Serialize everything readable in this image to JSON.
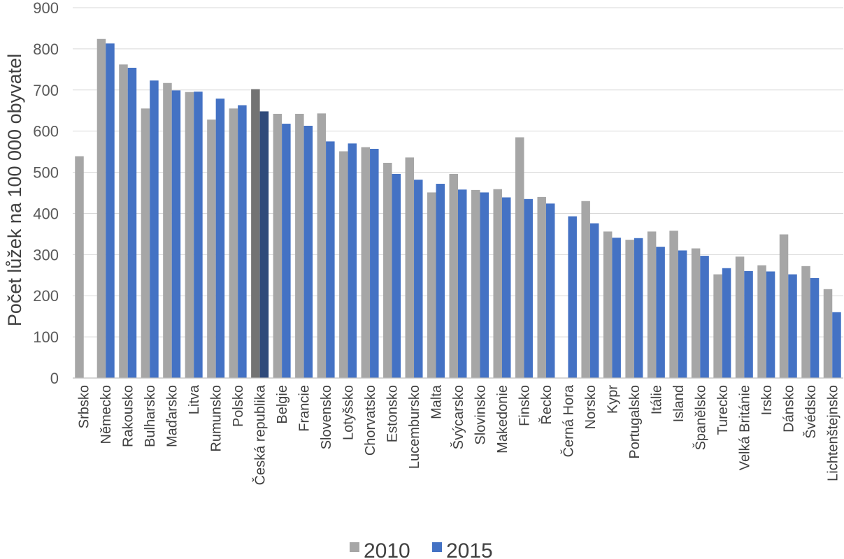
{
  "chart_data": {
    "type": "bar",
    "title": "",
    "xlabel": "",
    "ylabel": "Počet lůžek na 100 000 obyvatel",
    "ylim": [
      0,
      900
    ],
    "yticks": [
      0,
      100,
      200,
      300,
      400,
      500,
      600,
      700,
      800,
      900
    ],
    "grid": true,
    "legend_position": "bottom",
    "categories": [
      "Srbsko",
      "Německo",
      "Rakousko",
      "Bulharsko",
      "Maďarsko",
      "Litva",
      "Rumunsko",
      "Polsko",
      "Česká republika",
      "Belgie",
      "Francie",
      "Slovensko",
      "Lotyšsko",
      "Chorvatsko",
      "Estonsko",
      "Lucembursko",
      "Malta",
      "Švýcarsko",
      "Slovinsko",
      "Makedonie",
      "Finsko",
      "Řecko",
      "Černá Hora",
      "Norsko",
      "Kypr",
      "Portugalsko",
      "Itálie",
      "Island",
      "Španělsko",
      "Turecko",
      "Velká Británie",
      "Irsko",
      "Dánsko",
      "Švédsko",
      "Lichtenštejnsko"
    ],
    "series": [
      {
        "name": "2010",
        "color": "#a6a6a6",
        "highlight_color": "#737373",
        "values": [
          539,
          824,
          762,
          655,
          717,
          695,
          628,
          655,
          702,
          642,
          642,
          643,
          551,
          561,
          523,
          536,
          451,
          496,
          457,
          459,
          585,
          440,
          null,
          430,
          356,
          336,
          356,
          358,
          315,
          252,
          295,
          274,
          349,
          272,
          216
        ]
      },
      {
        "name": "2015",
        "color": "#4472c4",
        "highlight_color": "#2f4a7a",
        "values": [
          null,
          813,
          754,
          723,
          699,
          696,
          679,
          663,
          648,
          618,
          613,
          575,
          570,
          557,
          496,
          482,
          472,
          458,
          451,
          439,
          435,
          424,
          393,
          376,
          341,
          340,
          319,
          310,
          297,
          267,
          260,
          259,
          252,
          243,
          160
        ]
      }
    ],
    "highlight_category": "Česká republika"
  }
}
